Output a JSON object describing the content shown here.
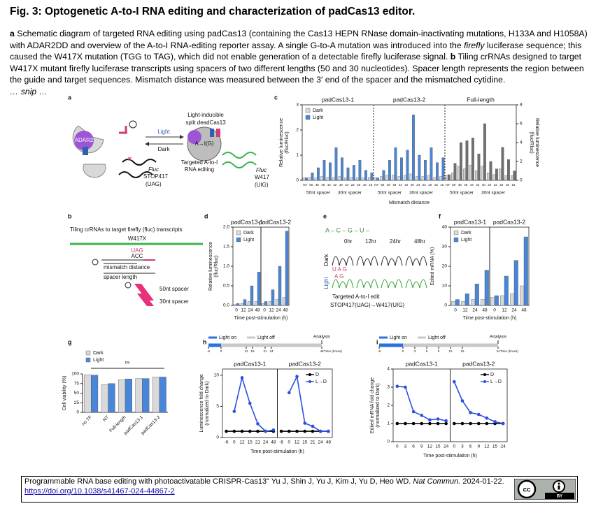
{
  "header": {
    "title": "Fig. 3: Optogenetic A-to-I RNA editing and characterization of padCas13 editor."
  },
  "caption": {
    "a_label": "a",
    "a_text_1": "Schematic diagram of targeted RNA editing using padCas13 (containing the Cas13 HEPN RNase domain-inactivating mutations, H133A and H1058A) with ADAR2DD and overview of the A-to-I RNA-editing reporter assay. A single G-to-A mutation was introduced into the",
    "a_italic": "firefly",
    "a_text_2": "luciferase sequence; this caused the W417X mutation (TGG to TAG), which did not enable generation of a detectable firefly luciferase signal.",
    "b_label": "b",
    "b_text": "Tiling crRNAs designed to target W417X mutant firefly luciferase transcripts using spacers of two different lengths (50 and 30 nucleotides). Spacer length represents the region between the guide and target sequences. Mismatch distance was measured between the 3′ end of the spacer and the mismatched cytidine.",
    "snip": "… snip …"
  },
  "panels": {
    "a": {
      "label": "a",
      "adar": "ADAR2",
      "light": "Light",
      "dark": "Dark",
      "split_1": "Light-inducible",
      "split_2": "split deadCas13",
      "edit": "A→I(G)",
      "target_1": "Targeted A-to-I",
      "target_2": "RNA editing",
      "fluc_left": "Fluc",
      "stop_1": "STOP417",
      "stop_2": "(UAG)",
      "fluc_right": "Fluc",
      "w_1": "W417",
      "w_2": "(UIG)"
    },
    "b": {
      "label": "b",
      "title": "Tiling crRNAs to target firefly (fluc) transcripts",
      "site": "W417X",
      "codon": "UAG",
      "anti": "ACC",
      "mismatch": "mismatch distance",
      "spacer": "spacer length",
      "s50": "50nt spacer",
      "s30": "30nt spacer"
    },
    "e": {
      "label": "e",
      "seq": "A – C – G – U –",
      "t0": "0hr",
      "t12": "12hr",
      "t24": "24hr",
      "t48": "48hr",
      "dark": "Dark",
      "light": "Light",
      "bases_dark": "U A G",
      "bases_light": "A G",
      "edit_1": "Targeted A-to-I edit",
      "edit_2": "STOP417(UAG)→W417(UIG)"
    },
    "h": {
      "label": "h",
      "timeline": {
        "on": "Light on",
        "off": "Light off",
        "analysis": "Analysis",
        "ticks": [
          -6,
          0,
          12,
          15,
          21,
          24,
          48
        ],
        "xlim": [
          -6,
          48
        ],
        "unit": "Time (hours)"
      }
    },
    "i": {
      "label": "i",
      "timeline": {
        "on": "Light on",
        "off": "Light off",
        "analysis": "Analysis",
        "ticks": [
          -6,
          0,
          3,
          6,
          9,
          12,
          15,
          24
        ],
        "xlim": [
          -6,
          24
        ],
        "unit": "Time (hours)"
      }
    }
  },
  "charts": {
    "c": {
      "label": "c",
      "type": "bar",
      "legend": "upper left",
      "ylim": [
        0,
        3
      ],
      "yticks": [
        0,
        1,
        2,
        3
      ],
      "y2lim": [
        0,
        8
      ],
      "y2ticks": [
        0,
        2,
        4,
        6,
        8
      ],
      "y_title": [
        "Relative luminescence",
        "(fluc/Rluc)"
      ],
      "y2_title": [
        "Relative luminescence",
        "(fluc/Rluc)"
      ],
      "x_title": "Mismatch distance",
      "x_sublabels": [
        "50nt spacer",
        "30nt spacer",
        "50nt spacer",
        "30nt spacer",
        "50nt spacer",
        "30nt spacer"
      ],
      "groups": [
        {
          "name": "padCas13-1",
          "categories": [
            "NT",
            "50",
            "48",
            "46",
            "44",
            "42",
            "40",
            "24",
            "22",
            "20",
            "18",
            "16"
          ],
          "series": [
            {
              "name": "Dark",
              "color": "#d9d9d9",
              "values": [
                0.1,
                0.12,
                0.1,
                0.15,
                0.12,
                0.1,
                0.15,
                0.1,
                0.12,
                0.1,
                0.1,
                0.12
              ]
            },
            {
              "name": "Light",
              "color": "#4a86d8",
              "values": [
                0.1,
                0.3,
                0.5,
                0.8,
                0.7,
                1.3,
                0.9,
                0.5,
                0.6,
                0.8,
                0.4,
                0.3
              ]
            }
          ]
        },
        {
          "name": "padCas13-2",
          "categories": [
            "NT",
            "50",
            "48",
            "46",
            "44",
            "42",
            "40",
            "24",
            "22",
            "20",
            "18",
            "16"
          ],
          "series": [
            {
              "name": "Dark",
              "color": "#d9d9d9",
              "values": [
                0.1,
                0.15,
                0.2,
                0.2,
                0.15,
                0.2,
                0.25,
                0.15,
                0.15,
                0.2,
                0.12,
                0.15
              ]
            },
            {
              "name": "Light",
              "color": "#4a86d8",
              "values": [
                0.1,
                0.4,
                0.8,
                1.3,
                0.9,
                1.2,
                2.6,
                1.0,
                0.8,
                1.3,
                0.7,
                0.9
              ]
            }
          ]
        },
        {
          "name": "Full-length",
          "axis": "y2",
          "categories": [
            "NT",
            "50",
            "48",
            "46",
            "44",
            "42",
            "40",
            "24",
            "22",
            "20",
            "18",
            "16"
          ],
          "series": [
            {
              "name": "Dark",
              "color": "#d0d0d0",
              "values": [
                0.5,
                0.8,
                1.5,
                1.2,
                1.6,
                1.0,
                1.5,
                0.8,
                0.6,
                1.2,
                0.5,
                0.5
              ]
            },
            {
              "name": "Light",
              "color": "#707070",
              "values": [
                0.6,
                1.8,
                4.0,
                4.2,
                4.5,
                2.8,
                6.0,
                2.0,
                1.2,
                3.5,
                2.2,
                1.0
              ]
            }
          ]
        }
      ]
    },
    "d": {
      "label": "d",
      "type": "bar",
      "legend": "upper left",
      "ylim": [
        0,
        2
      ],
      "yticks": [
        {
          "value": 0,
          "label": "0.0"
        },
        0.5,
        {
          "value": 1,
          "label": "1.0"
        },
        1.5,
        {
          "value": 2,
          "label": "2.0"
        }
      ],
      "y_title": [
        "Relative luminescence",
        "(fluc/Rluc)"
      ],
      "x_title": "Time post-stimulation (h)",
      "groups": [
        {
          "name": "padCas13-1",
          "categories": [
            "0",
            "12",
            "24",
            "48"
          ],
          "series": [
            {
              "name": "Dark",
              "color": "#d9d9d9",
              "values": [
                0.02,
                0.05,
                0.1,
                0.1
              ]
            },
            {
              "name": "Light",
              "color": "#4a86d8",
              "values": [
                0.05,
                0.15,
                0.5,
                0.85
              ]
            }
          ]
        },
        {
          "name": "padCas13-2",
          "categories": [
            "0",
            "12",
            "24",
            "48"
          ],
          "series": [
            {
              "name": "Dark",
              "color": "#d9d9d9",
              "values": [
                0.05,
                0.1,
                0.15,
                0.2
              ]
            },
            {
              "name": "Light",
              "color": "#4a86d8",
              "values": [
                0.1,
                0.4,
                1.0,
                1.9
              ]
            }
          ]
        }
      ]
    },
    "f": {
      "label": "f",
      "type": "bar",
      "legend": "upper left",
      "ylim": [
        0,
        40
      ],
      "yticks": [
        0,
        10,
        20,
        30,
        40
      ],
      "y_title": "Edited mRNA (%)",
      "x_title": "Time post-stimulation (h)",
      "groups": [
        {
          "name": "padCas13-1",
          "categories": [
            "0",
            "12",
            "24",
            "48"
          ],
          "series": [
            {
              "name": "Dark",
              "color": "#d9d9d9",
              "values": [
                2,
                2,
                3,
                3
              ]
            },
            {
              "name": "Light",
              "color": "#4a86d8",
              "values": [
                3,
                6,
                11,
                18
              ]
            }
          ]
        },
        {
          "name": "padCas13-2",
          "categories": [
            "0",
            "12",
            "24",
            "48"
          ],
          "series": [
            {
              "name": "Dark",
              "color": "#d9d9d9",
              "values": [
                4,
                5,
                6,
                10
              ]
            },
            {
              "name": "Light",
              "color": "#4a86d8",
              "values": [
                5,
                15,
                23,
                35
              ]
            }
          ]
        }
      ]
    },
    "g": {
      "label": "g",
      "type": "bar",
      "legend": "above left",
      "ylim": [
        0,
        100
      ],
      "yticks": [
        0,
        25,
        50,
        75,
        100
      ],
      "y_title": "Cell viability (%)",
      "annotation": "ns",
      "groups": [
        {
          "categories": [
            "no TF",
            "NT",
            "Full-length",
            "padCas13-1",
            "padCas13-2"
          ],
          "series": [
            {
              "name": "Dark",
              "color": "#d9d9d9",
              "values": [
                98,
                72,
                85,
                88,
                92
              ]
            },
            {
              "name": "Light",
              "color": "#4a86d8",
              "values": [
                97,
                75,
                87,
                88,
                92
              ]
            }
          ]
        }
      ]
    },
    "h": {
      "label": "h",
      "type": "line",
      "legend": "upper right",
      "ylim": [
        0,
        11
      ],
      "yticks": [
        0,
        5,
        10
      ],
      "y_title": [
        "Luminescence fold change",
        "(normalized to Dark)"
      ],
      "x_title": "Time post-stimulation (h)",
      "groups": [
        {
          "name": "padCas13-1",
          "categories": [
            "-6",
            "0",
            "12",
            "15",
            "21",
            "24",
            "48"
          ],
          "series": [
            {
              "name": "D",
              "color": "#000000",
              "values": [
                1,
                1,
                1,
                1,
                1,
                1,
                1
              ]
            },
            {
              "name": "L→D",
              "color": "#2b4fe0",
              "values": [
                null,
                4.2,
                9.6,
                5.5,
                2.2,
                1.0,
                1.2
              ]
            }
          ]
        },
        {
          "name": "padCas13-2",
          "categories": [
            "-6",
            "0",
            "12",
            "15",
            "21",
            "24",
            "48"
          ],
          "series": [
            {
              "name": "D",
              "color": "#000000",
              "values": [
                1,
                1,
                1,
                1,
                1,
                1,
                1
              ]
            },
            {
              "name": "L→D",
              "color": "#2b4fe0",
              "values": [
                null,
                7.2,
                9.8,
                2.3,
                1.8,
                1.0,
                1.0
              ]
            }
          ]
        }
      ]
    },
    "i": {
      "label": "i",
      "type": "line",
      "legend": "upper right",
      "ylim": [
        0,
        4
      ],
      "yticks": [
        0,
        1,
        2,
        3,
        4
      ],
      "y_title": [
        "Edited mRNA fold change",
        "(normalized to Dark)"
      ],
      "x_title": "Time post-stimulation (h)",
      "groups": [
        {
          "name": "padCas13-1",
          "categories": [
            "0",
            "3",
            "6",
            "9",
            "12",
            "15",
            "24"
          ],
          "series": [
            {
              "name": "D",
              "color": "#000000",
              "values": [
                1,
                1,
                1,
                1,
                1,
                1,
                1
              ]
            },
            {
              "name": "L→D",
              "color": "#2b4fe0",
              "values": [
                3.05,
                3.0,
                1.65,
                1.45,
                1.2,
                1.25,
                1.15
              ]
            }
          ]
        },
        {
          "name": "padCas13-2",
          "categories": [
            "0",
            "3",
            "6",
            "9",
            "12",
            "15",
            "24"
          ],
          "series": [
            {
              "name": "D",
              "color": "#000000",
              "values": [
                1,
                1,
                1,
                1,
                1,
                1,
                1
              ]
            },
            {
              "name": "L→D",
              "color": "#2b4fe0",
              "values": [
                3.3,
                2.25,
                1.6,
                1.5,
                1.3,
                1.1,
                1.0
              ]
            }
          ]
        }
      ]
    }
  },
  "footer": {
    "citation_1": "Programmable RNA base editing with photoactivatable CRISPR-Cas13\" Yu J, Shin J, Yu J, Kim J, Yu D, Heo WD.",
    "journal": "Nat Commun.",
    "date": "2024-01-22.",
    "doi": "https://doi.org/10.1038/s41467-024-44867-2",
    "badge": "BY"
  }
}
